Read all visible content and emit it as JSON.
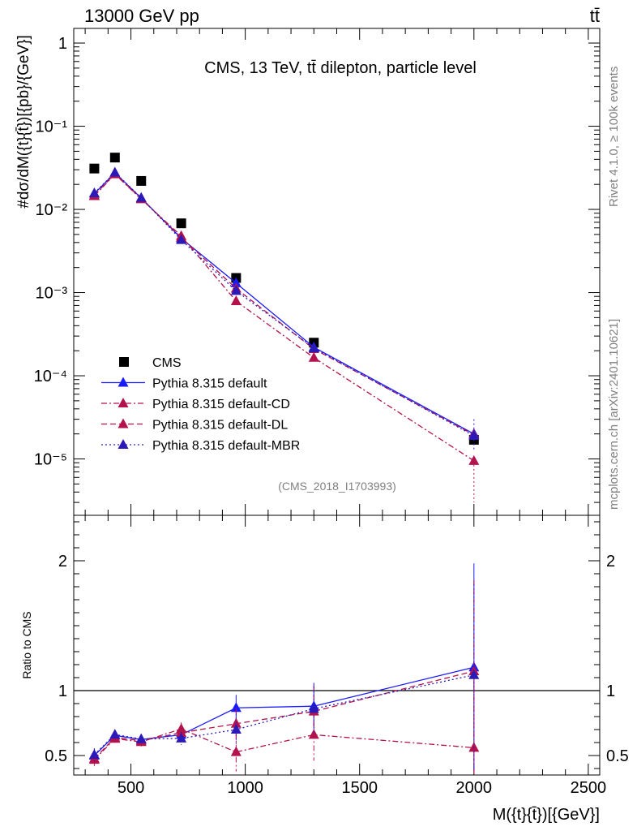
{
  "header": {
    "left": "13000 GeV pp",
    "right": "tt̄"
  },
  "side_labels": {
    "rivet": "Rivet 4.1.0, ≥ 100k events",
    "mcplots": "mcplots.cern.ch [arXiv:2401.10621]"
  },
  "chart_data": [
    {
      "type": "line",
      "title": "CMS, 13 TeV, tt̄ dilepton, particle level",
      "watermark": "(CMS_2018_I1703993)",
      "ylabel": "#dσ/dM({t}{t̄})[{pb}/{GeV}]",
      "xlabel": "M({t}{t̄})[{GeV}]",
      "yscale": "log",
      "ylim": [
        2.1e-06,
        1.5
      ],
      "xlim": [
        250,
        2550
      ],
      "y_ticks": [
        {
          "value": 1,
          "label": "1"
        },
        {
          "value": 0.1,
          "label": "10⁻¹"
        },
        {
          "value": 0.01,
          "label": "10⁻²"
        },
        {
          "value": 0.001,
          "label": "10⁻³"
        },
        {
          "value": 0.0001,
          "label": "10⁻⁴"
        },
        {
          "value": 1e-05,
          "label": "10⁻⁵"
        }
      ],
      "x": [
        340,
        430,
        545,
        720,
        960,
        1300,
        2000
      ],
      "series": [
        {
          "name": "CMS",
          "style": "data",
          "color": "#000000",
          "values": [
            0.031,
            0.042,
            0.022,
            0.0068,
            0.0015,
            0.00025,
            1.7e-05
          ]
        },
        {
          "name": "Pythia 8.315 default",
          "style": "solid",
          "color": "#1a1aff",
          "values": [
            0.0155,
            0.0275,
            0.0137,
            0.0045,
            0.0013,
            0.00022,
            2e-05
          ]
        },
        {
          "name": "Pythia 8.315 default-CD",
          "style": "dashdot",
          "color": "#b3124d",
          "values": [
            0.0145,
            0.0265,
            0.0133,
            0.0048,
            0.00079,
            0.000165,
            9.5e-06
          ]
        },
        {
          "name": "Pythia 8.315 default-DL",
          "style": "dashed",
          "color": "#b3124d",
          "values": [
            0.0148,
            0.0268,
            0.0135,
            0.0046,
            0.00112,
            0.00021,
            1.95e-05
          ]
        },
        {
          "name": "Pythia 8.315 default-MBR",
          "style": "dotted",
          "color": "#2b1ab8",
          "values": [
            0.0157,
            0.0278,
            0.0138,
            0.0043,
            0.00105,
            0.000215,
            1.9e-05
          ]
        }
      ]
    },
    {
      "type": "line",
      "ylabel": "Ratio to CMS",
      "xlabel": "M({t}{t̄})[{GeV}]",
      "ylim": [
        0.35,
        2.35
      ],
      "xlim": [
        250,
        2550
      ],
      "y_ticks": [
        {
          "value": 0.5,
          "label": "0.5"
        },
        {
          "value": 1,
          "label": "1"
        },
        {
          "value": 2,
          "label": "2"
        }
      ],
      "x_ticks": [
        {
          "value": 500,
          "label": "500"
        },
        {
          "value": 1000,
          "label": "1000"
        },
        {
          "value": 1500,
          "label": "1500"
        },
        {
          "value": 2000,
          "label": "2000"
        },
        {
          "value": 2500,
          "label": "2500"
        }
      ],
      "x": [
        340,
        430,
        545,
        720,
        960,
        1300,
        2000
      ],
      "series": [
        {
          "name": "Pythia 8.315 default",
          "style": "solid",
          "color": "#1a1aff",
          "values": [
            0.5,
            0.655,
            0.623,
            0.66,
            0.867,
            0.88,
            1.18
          ],
          "errors": [
            0.05,
            0.03,
            0.04,
            0.05,
            0.1,
            0.17,
            0.8
          ]
        },
        {
          "name": "Pythia 8.315 default-CD",
          "style": "dashdot",
          "color": "#b3124d",
          "values": [
            0.468,
            0.63,
            0.605,
            0.705,
            0.527,
            0.66,
            0.56
          ],
          "errors": [
            0.05,
            0.03,
            0.04,
            0.05,
            0.15,
            0.2,
            0.5
          ]
        },
        {
          "name": "Pythia 8.315 default-DL",
          "style": "dashed",
          "color": "#b3124d",
          "values": [
            0.476,
            0.638,
            0.614,
            0.676,
            0.745,
            0.84,
            1.15
          ],
          "errors": [
            0.05,
            0.03,
            0.04,
            0.05,
            0.12,
            0.2,
            0.7
          ]
        },
        {
          "name": "Pythia 8.315 default-MBR",
          "style": "dotted",
          "color": "#2b1ab8",
          "values": [
            0.506,
            0.662,
            0.627,
            0.632,
            0.7,
            0.86,
            1.12
          ],
          "errors": [
            0.05,
            0.03,
            0.04,
            0.05,
            0.12,
            0.2,
            0.7
          ]
        }
      ]
    }
  ]
}
